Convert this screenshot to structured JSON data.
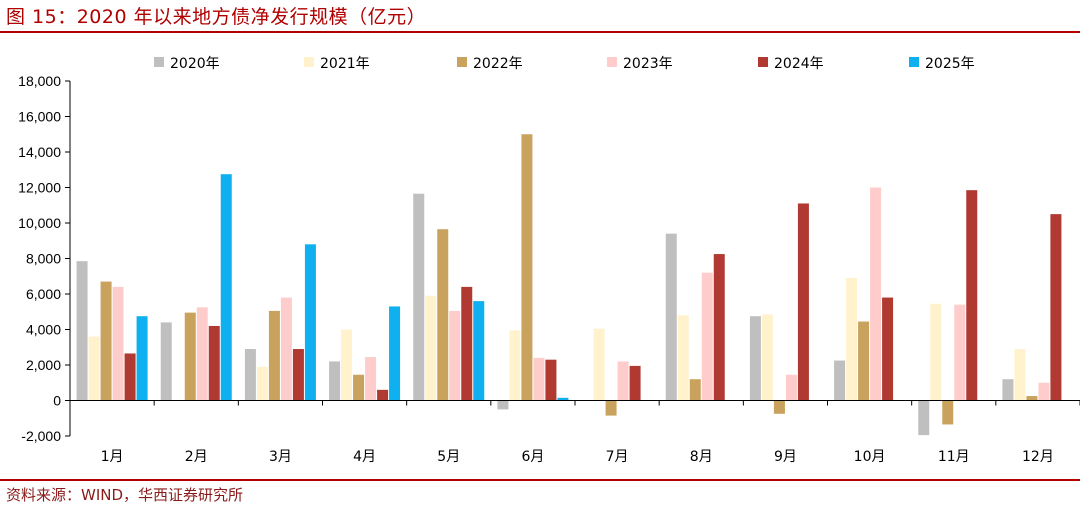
{
  "figure": {
    "title": "图 15：2020 年以来地方债净发行规模（亿元）",
    "source": "资料来源：WIND，华西证券研究所"
  },
  "chart_data": {
    "type": "bar",
    "categories": [
      "1月",
      "2月",
      "3月",
      "4月",
      "5月",
      "6月",
      "7月",
      "8月",
      "9月",
      "10月",
      "11月",
      "12月"
    ],
    "ylim": [
      -2000,
      18000
    ],
    "yticks": [
      -2000,
      0,
      2000,
      4000,
      6000,
      8000,
      10000,
      12000,
      14000,
      16000,
      18000
    ],
    "ytick_labels": [
      "-2,000",
      "0",
      "2,000",
      "4,000",
      "6,000",
      "8,000",
      "10,000",
      "12,000",
      "14,000",
      "16,000",
      "18,000"
    ],
    "grid": false,
    "legend_position": "top",
    "series": [
      {
        "name": "2020年",
        "color": "#bfbfbf",
        "values": [
          7850,
          4400,
          2900,
          2200,
          11650,
          -500,
          null,
          9400,
          4750,
          2250,
          -1950,
          1200
        ]
      },
      {
        "name": "2021年",
        "color": "#fff2cc",
        "values": [
          3600,
          null,
          1900,
          4000,
          5900,
          3950,
          4050,
          4800,
          4850,
          6900,
          5450,
          2900
        ]
      },
      {
        "name": "2022年",
        "color": "#c9a35e",
        "values": [
          6700,
          4950,
          5050,
          1450,
          9650,
          15000,
          -850,
          1200,
          -750,
          4450,
          -1350,
          250
        ]
      },
      {
        "name": "2023年",
        "color": "#ffcccc",
        "values": [
          6400,
          5250,
          5800,
          2450,
          5050,
          2400,
          2200,
          7200,
          1450,
          12000,
          5400,
          1000
        ]
      },
      {
        "name": "2024年",
        "color": "#b03a32",
        "values": [
          2650,
          4200,
          2900,
          600,
          6400,
          2300,
          1950,
          8250,
          11100,
          5800,
          11850,
          10500
        ]
      },
      {
        "name": "2025年",
        "color": "#0fb0f0",
        "values": [
          4750,
          12750,
          8800,
          5300,
          5600,
          150,
          null,
          null,
          null,
          null,
          null,
          null
        ]
      }
    ]
  }
}
